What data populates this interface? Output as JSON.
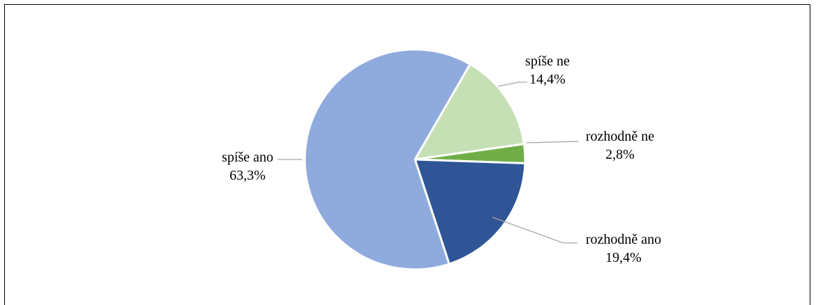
{
  "chart_data": {
    "type": "pie",
    "start_angle_deg": 30,
    "direction": "clockwise",
    "slices": [
      {
        "key": "spise_ne",
        "label": "spíše ne",
        "value_label": "14,4%",
        "value": 14.4,
        "color": "#C5E0B4"
      },
      {
        "key": "rozhodne_ne",
        "label": "rozhodně ne",
        "value_label": "2,8%",
        "value": 2.8,
        "color": "#70AD47"
      },
      {
        "key": "rozhodne_ano",
        "label": "rozhodně ano",
        "value_label": "19,4%",
        "value": 19.4,
        "color": "#2F5597"
      },
      {
        "key": "spise_ano",
        "label": "spíše ano",
        "value_label": "63,3%",
        "value": 63.3,
        "color": "#8FAADC"
      }
    ],
    "leader_line_color": "#A6A6A6"
  }
}
